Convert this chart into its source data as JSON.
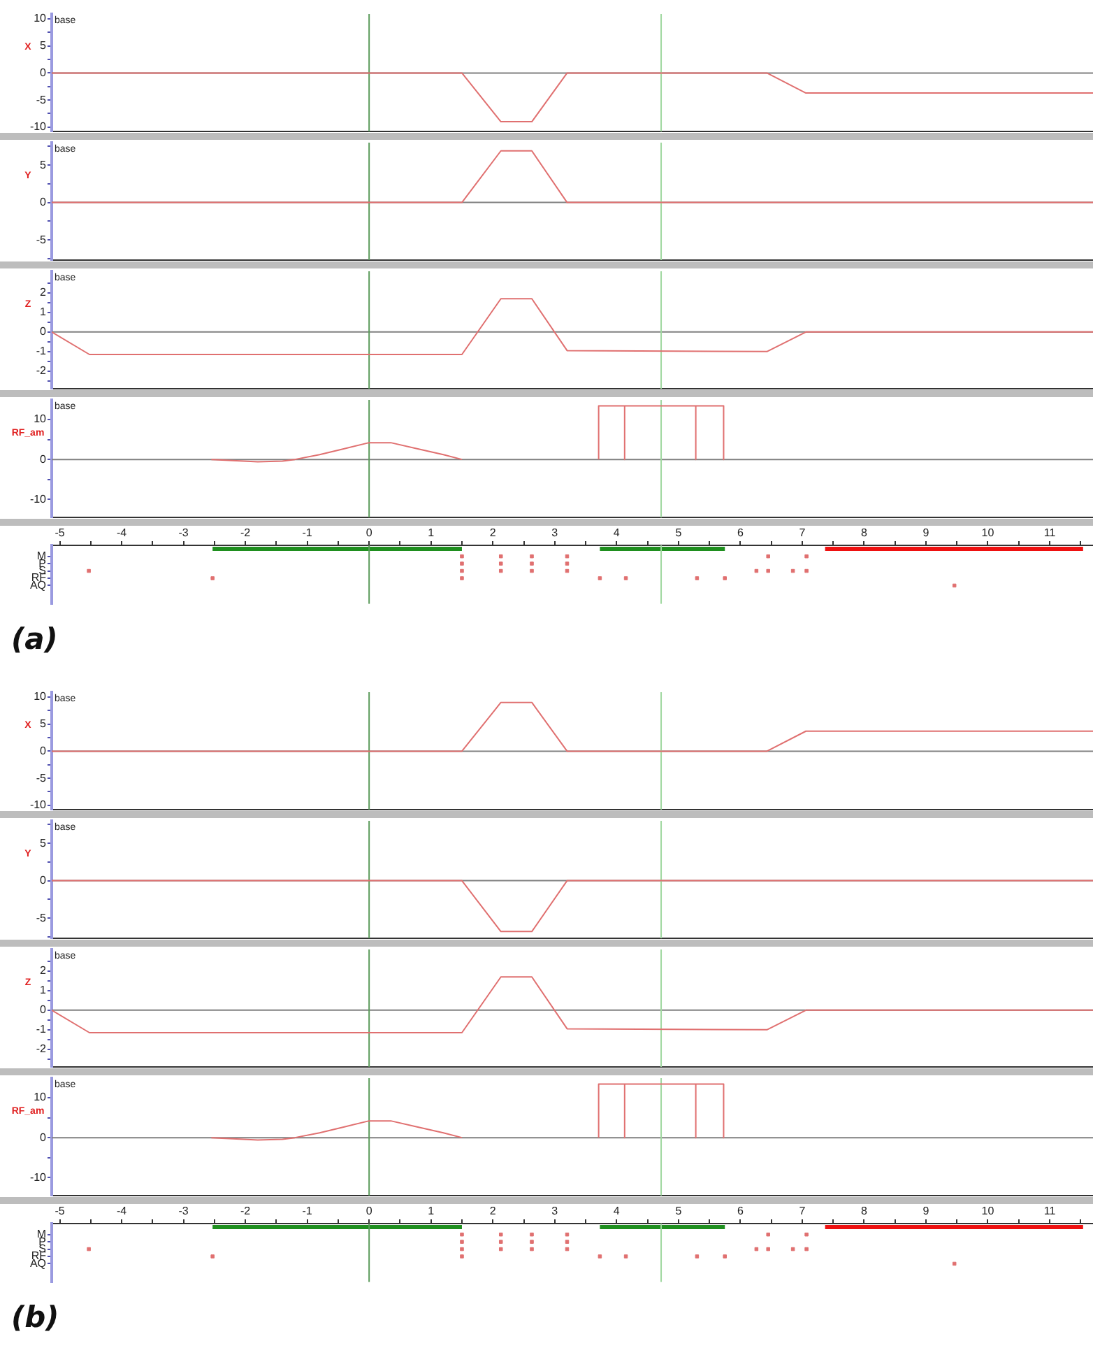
{
  "chart_data": [
    {
      "type": "line",
      "ylabel": "X",
      "annotations": [
        "base"
      ],
      "xlim": [
        -5.13,
        11.7
      ],
      "xticks": [
        -5,
        -4,
        -3,
        -2,
        -1,
        0,
        1,
        2,
        3,
        4,
        5,
        6,
        7,
        8,
        9,
        10,
        11
      ],
      "ylim": [
        -10.8,
        10.9
      ],
      "yticks": [
        -10,
        {
          "value": -7.5,
          "label": null
        },
        -5,
        {
          "value": -2.5,
          "label": null
        },
        0,
        {
          "value": 2.5,
          "label": null
        },
        5,
        {
          "value": 7.5,
          "label": null
        },
        10
      ],
      "tick_labels": "y",
      "ref_lines": [
        {
          "axis": "y",
          "value": 0,
          "color": "#808080"
        },
        {
          "axis": "x",
          "value": 0,
          "color": "#5b9b5b"
        },
        {
          "axis": "x",
          "value": 4.72,
          "color": "#a0d8a0"
        }
      ],
      "series": [
        {
          "color": "#e07070",
          "x": [
            -5.13,
            1.5,
            2.13,
            2.63,
            3.2,
            6.43,
            7.06,
            11.7
          ],
          "values": [
            0,
            0,
            -9,
            -9,
            0,
            0,
            -3.7,
            -3.7
          ]
        }
      ]
    },
    {
      "type": "line",
      "ylabel": "Y",
      "annotations": [
        "base"
      ],
      "xlim": [
        -5.13,
        11.7
      ],
      "xticks": [
        -5,
        -4,
        -3,
        -2,
        -1,
        0,
        1,
        2,
        3,
        4,
        5,
        6,
        7,
        8,
        9,
        10,
        11
      ],
      "ylim": [
        -7.7,
        8
      ],
      "yticks": [
        {
          "value": -7.5,
          "label": null
        },
        -5,
        {
          "value": -2.5,
          "label": null
        },
        0,
        {
          "value": 2.5,
          "label": null
        },
        5,
        {
          "value": 7.5,
          "label": null
        }
      ],
      "tick_labels": "y",
      "ref_lines": [
        {
          "axis": "y",
          "value": 0,
          "color": "#808080"
        },
        {
          "axis": "x",
          "value": 0,
          "color": "#5b9b5b"
        },
        {
          "axis": "x",
          "value": 4.72,
          "color": "#a0d8a0"
        }
      ],
      "series": [
        {
          "color": "#e07070",
          "x": [
            -5.13,
            1.5,
            2.13,
            2.63,
            3.2,
            11.7
          ],
          "values": [
            0,
            0,
            6.9,
            6.9,
            0,
            0
          ]
        }
      ]
    },
    {
      "type": "line",
      "ylabel": "Z",
      "annotations": [
        "base"
      ],
      "xlim": [
        -5.13,
        11.7
      ],
      "xticks": [
        -5,
        -4,
        -3,
        -2,
        -1,
        0,
        1,
        2,
        3,
        4,
        5,
        6,
        7,
        8,
        9,
        10,
        11
      ],
      "ylim": [
        -2.9,
        3.1
      ],
      "yticks": [
        {
          "value": -2.5,
          "label": null
        },
        -2,
        {
          "value": -1.5,
          "label": null
        },
        -1,
        {
          "value": -0.5,
          "label": null
        },
        0,
        {
          "value": 0.5,
          "label": null
        },
        1,
        {
          "value": 1.5,
          "label": null
        },
        2,
        {
          "value": 2.5,
          "label": null
        }
      ],
      "tick_labels": "y",
      "ref_lines": [
        {
          "axis": "y",
          "value": 0,
          "color": "#808080"
        },
        {
          "axis": "x",
          "value": 0,
          "color": "#5b9b5b"
        },
        {
          "axis": "x",
          "value": 4.72,
          "color": "#a0d8a0"
        }
      ],
      "series": [
        {
          "color": "#e07070",
          "x": [
            -5.13,
            -4.52,
            1.5,
            2.13,
            2.63,
            3.2,
            6.43,
            7.06,
            11.7
          ],
          "values": [
            0,
            -1.15,
            -1.15,
            1.7,
            1.7,
            -0.95,
            -1.0,
            0,
            0
          ]
        }
      ]
    },
    {
      "type": "line",
      "ylabel": "RF_am",
      "annotations": [
        "base"
      ],
      "xlim": [
        -5.13,
        11.7
      ],
      "xticks": [
        -5,
        -4,
        -3,
        -2,
        -1,
        0,
        1,
        2,
        3,
        4,
        5,
        6,
        7,
        8,
        9,
        10,
        11
      ],
      "ylim": [
        -14.5,
        14.9
      ],
      "yticks": [
        -10,
        {
          "value": -5,
          "label": null
        },
        0,
        {
          "value": 5,
          "label": null
        },
        10
      ],
      "tick_labels": "y",
      "ref_lines": [
        {
          "axis": "y",
          "value": 0,
          "color": "#808080"
        },
        {
          "axis": "x",
          "value": 0,
          "color": "#5b9b5b"
        },
        {
          "axis": "x",
          "value": 4.72,
          "color": "#a0d8a0"
        }
      ],
      "series": [
        {
          "color": "#e07070",
          "x": [
            -2.55,
            -2.2,
            -1.8,
            -1.4,
            -1.2,
            -0.8,
            -0.4,
            0,
            0.35,
            0.8,
            1.2,
            1.5
          ],
          "values": [
            0,
            -0.3,
            -0.6,
            -0.4,
            0,
            1.2,
            2.7,
            4.2,
            4.2,
            2.6,
            1.2,
            0
          ]
        },
        {
          "color": "#e07070",
          "x": [
            3.71,
            3.71,
            4.13,
            4.13,
            4.13,
            5.28,
            5.28,
            5.28,
            5.73,
            5.73
          ],
          "values": [
            0,
            13.4,
            13.4,
            0,
            13.4,
            13.4,
            0,
            13.4,
            13.4,
            0
          ]
        }
      ]
    },
    {
      "type": "scatter",
      "title": "(a)",
      "marker": "square",
      "orientation": "horizontal",
      "xlim": [
        -5.13,
        11.7
      ],
      "xticks": [
        -5,
        {
          "value": -4.5,
          "label": null
        },
        -4,
        {
          "value": -3.5,
          "label": null
        },
        -3,
        {
          "value": -2.5,
          "label": null
        },
        -2,
        {
          "value": -1.5,
          "label": null
        },
        -1,
        {
          "value": -0.5,
          "label": null
        },
        0,
        {
          "value": 0.5,
          "label": null
        },
        1,
        {
          "value": 1.5,
          "label": null
        },
        2,
        {
          "value": 2.5,
          "label": null
        },
        3,
        {
          "value": 3.5,
          "label": null
        },
        4,
        {
          "value": 4.5,
          "label": null
        },
        5,
        {
          "value": 5.5,
          "label": null
        },
        6,
        {
          "value": 6.5,
          "label": null
        },
        7,
        {
          "value": 7.5,
          "label": null
        },
        8,
        {
          "value": 8.5,
          "label": null
        },
        9,
        {
          "value": 9.5,
          "label": null
        },
        10,
        {
          "value": 10.5,
          "label": null
        },
        11,
        {
          "value": 11.5,
          "label": null
        }
      ],
      "categories": [
        "M",
        "P",
        "S",
        "RF",
        "AQ"
      ],
      "ref_lines": [
        {
          "axis": "x",
          "value": 0,
          "color": "#5b9b5b"
        },
        {
          "axis": "x",
          "value": 4.72,
          "color": "#a0d8a0"
        }
      ],
      "bands": [
        {
          "axis": "x",
          "from": -2.53,
          "to": 1.5,
          "color": "#1f8f1f"
        },
        {
          "axis": "x",
          "from": 3.73,
          "to": 5.75,
          "color": "#1f8f1f"
        },
        {
          "axis": "x",
          "from": 7.37,
          "to": 11.54,
          "color": "#ee1111"
        }
      ],
      "series": [
        {
          "color": "#e07070",
          "values": [
            1.5,
            1.5,
            -4.53,
            -2.53,
            9.46
          ]
        },
        {
          "color": "#e07070",
          "values": [
            2.13,
            2.13,
            1.5,
            1.5,
            null
          ]
        },
        {
          "color": "#e07070",
          "values": [
            2.63,
            2.63,
            2.13,
            3.73,
            null
          ]
        },
        {
          "color": "#e07070",
          "values": [
            3.2,
            3.2,
            2.63,
            4.15,
            null
          ]
        },
        {
          "color": "#e07070",
          "values": [
            6.45,
            null,
            3.2,
            5.3,
            null
          ]
        },
        {
          "color": "#e07070",
          "values": [
            7.07,
            null,
            6.26,
            5.75,
            null
          ]
        },
        {
          "color": "#e07070",
          "values": [
            null,
            null,
            6.45,
            null,
            null
          ]
        },
        {
          "color": "#e07070",
          "values": [
            null,
            null,
            6.85,
            null,
            null
          ]
        },
        {
          "color": "#e07070",
          "values": [
            null,
            null,
            7.07,
            null,
            null
          ]
        }
      ]
    },
    {
      "type": "line",
      "ylabel": "X",
      "annotations": [
        "base"
      ],
      "xlim": [
        -5.13,
        11.7
      ],
      "xticks": [
        -5,
        -4,
        -3,
        -2,
        -1,
        0,
        1,
        2,
        3,
        4,
        5,
        6,
        7,
        8,
        9,
        10,
        11
      ],
      "ylim": [
        -10.8,
        10.9
      ],
      "yticks": [
        -10,
        {
          "value": -7.5,
          "label": null
        },
        -5,
        {
          "value": -2.5,
          "label": null
        },
        0,
        {
          "value": 2.5,
          "label": null
        },
        5,
        {
          "value": 7.5,
          "label": null
        },
        10
      ],
      "tick_labels": "y",
      "ref_lines": [
        {
          "axis": "y",
          "value": 0,
          "color": "#808080"
        },
        {
          "axis": "x",
          "value": 0,
          "color": "#5b9b5b"
        },
        {
          "axis": "x",
          "value": 4.72,
          "color": "#a0d8a0"
        }
      ],
      "series": [
        {
          "color": "#e07070",
          "x": [
            -5.13,
            1.5,
            2.13,
            2.63,
            3.2,
            6.43,
            7.06,
            11.7
          ],
          "values": [
            0,
            0,
            9,
            9,
            0,
            0,
            3.7,
            3.7
          ]
        }
      ]
    },
    {
      "type": "line",
      "ylabel": "Y",
      "annotations": [
        "base"
      ],
      "xlim": [
        -5.13,
        11.7
      ],
      "xticks": [
        -5,
        -4,
        -3,
        -2,
        -1,
        0,
        1,
        2,
        3,
        4,
        5,
        6,
        7,
        8,
        9,
        10,
        11
      ],
      "ylim": [
        -7.7,
        8
      ],
      "yticks": [
        {
          "value": -7.5,
          "label": null
        },
        -5,
        {
          "value": -2.5,
          "label": null
        },
        0,
        {
          "value": 2.5,
          "label": null
        },
        5,
        {
          "value": 7.5,
          "label": null
        }
      ],
      "tick_labels": "y",
      "ref_lines": [
        {
          "axis": "y",
          "value": 0,
          "color": "#808080"
        },
        {
          "axis": "x",
          "value": 0,
          "color": "#5b9b5b"
        },
        {
          "axis": "x",
          "value": 4.72,
          "color": "#a0d8a0"
        }
      ],
      "series": [
        {
          "color": "#e07070",
          "x": [
            -5.13,
            1.5,
            2.13,
            2.63,
            3.2,
            11.7
          ],
          "values": [
            0,
            0,
            -6.8,
            -6.8,
            0,
            0
          ]
        }
      ]
    },
    {
      "type": "line",
      "ylabel": "Z",
      "annotations": [
        "base"
      ],
      "xlim": [
        -5.13,
        11.7
      ],
      "xticks": [
        -5,
        -4,
        -3,
        -2,
        -1,
        0,
        1,
        2,
        3,
        4,
        5,
        6,
        7,
        8,
        9,
        10,
        11
      ],
      "ylim": [
        -2.9,
        3.1
      ],
      "yticks": [
        {
          "value": -2.5,
          "label": null
        },
        -2,
        {
          "value": -1.5,
          "label": null
        },
        -1,
        {
          "value": -0.5,
          "label": null
        },
        0,
        {
          "value": 0.5,
          "label": null
        },
        1,
        {
          "value": 1.5,
          "label": null
        },
        2,
        {
          "value": 2.5,
          "label": null
        }
      ],
      "tick_labels": "y",
      "ref_lines": [
        {
          "axis": "y",
          "value": 0,
          "color": "#808080"
        },
        {
          "axis": "x",
          "value": 0,
          "color": "#5b9b5b"
        },
        {
          "axis": "x",
          "value": 4.72,
          "color": "#a0d8a0"
        }
      ],
      "series": [
        {
          "color": "#e07070",
          "x": [
            -5.13,
            -4.52,
            1.5,
            2.13,
            2.63,
            3.2,
            6.43,
            7.06,
            11.7
          ],
          "values": [
            0,
            -1.15,
            -1.15,
            1.7,
            1.7,
            -0.95,
            -1.0,
            0,
            0
          ]
        }
      ]
    },
    {
      "type": "line",
      "ylabel": "RF_am",
      "annotations": [
        "base"
      ],
      "xlim": [
        -5.13,
        11.7
      ],
      "xticks": [
        -5,
        -4,
        -3,
        -2,
        -1,
        0,
        1,
        2,
        3,
        4,
        5,
        6,
        7,
        8,
        9,
        10,
        11
      ],
      "ylim": [
        -14.5,
        14.9
      ],
      "yticks": [
        -10,
        {
          "value": -5,
          "label": null
        },
        0,
        {
          "value": 5,
          "label": null
        },
        10
      ],
      "tick_labels": "y",
      "ref_lines": [
        {
          "axis": "y",
          "value": 0,
          "color": "#808080"
        },
        {
          "axis": "x",
          "value": 0,
          "color": "#5b9b5b"
        },
        {
          "axis": "x",
          "value": 4.72,
          "color": "#a0d8a0"
        }
      ],
      "series": [
        {
          "color": "#e07070",
          "x": [
            -2.55,
            -2.2,
            -1.8,
            -1.4,
            -1.2,
            -0.8,
            -0.4,
            0,
            0.35,
            0.8,
            1.2,
            1.5
          ],
          "values": [
            0,
            -0.3,
            -0.6,
            -0.4,
            0,
            1.2,
            2.7,
            4.2,
            4.2,
            2.6,
            1.2,
            0
          ]
        },
        {
          "color": "#e07070",
          "x": [
            3.71,
            3.71,
            4.13,
            4.13,
            4.13,
            5.28,
            5.28,
            5.28,
            5.73,
            5.73
          ],
          "values": [
            0,
            13.4,
            13.4,
            0,
            13.4,
            13.4,
            0,
            13.4,
            13.4,
            0
          ]
        }
      ]
    },
    {
      "type": "scatter",
      "title": "(b)",
      "marker": "square",
      "orientation": "horizontal",
      "xlim": [
        -5.13,
        11.7
      ],
      "xticks": [
        -5,
        {
          "value": -4.5,
          "label": null
        },
        -4,
        {
          "value": -3.5,
          "label": null
        },
        -3,
        {
          "value": -2.5,
          "label": null
        },
        -2,
        {
          "value": -1.5,
          "label": null
        },
        -1,
        {
          "value": -0.5,
          "label": null
        },
        0,
        {
          "value": 0.5,
          "label": null
        },
        1,
        {
          "value": 1.5,
          "label": null
        },
        2,
        {
          "value": 2.5,
          "label": null
        },
        3,
        {
          "value": 3.5,
          "label": null
        },
        4,
        {
          "value": 4.5,
          "label": null
        },
        5,
        {
          "value": 5.5,
          "label": null
        },
        6,
        {
          "value": 6.5,
          "label": null
        },
        7,
        {
          "value": 7.5,
          "label": null
        },
        8,
        {
          "value": 8.5,
          "label": null
        },
        9,
        {
          "value": 9.5,
          "label": null
        },
        10,
        {
          "value": 10.5,
          "label": null
        },
        11,
        {
          "value": 11.5,
          "label": null
        }
      ],
      "categories": [
        "M",
        "P",
        "S",
        "RF",
        "AQ"
      ],
      "ref_lines": [
        {
          "axis": "x",
          "value": 0,
          "color": "#5b9b5b"
        },
        {
          "axis": "x",
          "value": 4.72,
          "color": "#a0d8a0"
        }
      ],
      "bands": [
        {
          "axis": "x",
          "from": -2.53,
          "to": 1.5,
          "color": "#1f8f1f"
        },
        {
          "axis": "x",
          "from": 3.73,
          "to": 5.75,
          "color": "#1f8f1f"
        },
        {
          "axis": "x",
          "from": 7.37,
          "to": 11.54,
          "color": "#ee1111"
        }
      ],
      "series": [
        {
          "color": "#e07070",
          "values": [
            1.5,
            1.5,
            -4.53,
            -2.53,
            9.46
          ]
        },
        {
          "color": "#e07070",
          "values": [
            2.13,
            2.13,
            1.5,
            1.5,
            null
          ]
        },
        {
          "color": "#e07070",
          "values": [
            2.63,
            2.63,
            2.13,
            3.73,
            null
          ]
        },
        {
          "color": "#e07070",
          "values": [
            3.2,
            3.2,
            2.63,
            4.15,
            null
          ]
        },
        {
          "color": "#e07070",
          "values": [
            6.45,
            null,
            3.2,
            5.3,
            null
          ]
        },
        {
          "color": "#e07070",
          "values": [
            7.07,
            null,
            6.26,
            5.75,
            null
          ]
        },
        {
          "color": "#e07070",
          "values": [
            null,
            null,
            6.45,
            null,
            null
          ]
        },
        {
          "color": "#e07070",
          "values": [
            null,
            null,
            6.85,
            null,
            null
          ]
        },
        {
          "color": "#e07070",
          "values": [
            null,
            null,
            7.07,
            null,
            null
          ]
        }
      ]
    }
  ]
}
